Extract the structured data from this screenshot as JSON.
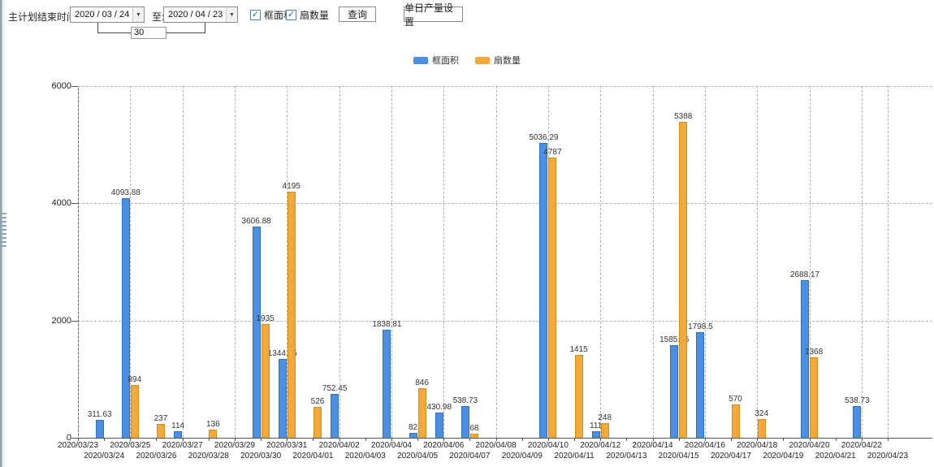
{
  "toolbar": {
    "end_time_label": "主计划结束时间:",
    "start_date": "2020 / 03 / 24",
    "to_label": "至:",
    "end_date": "2020 / 04 / 23",
    "day_span": "30",
    "checkboxes": [
      {
        "label": "框面积",
        "checked": true
      },
      {
        "label": "扇数量",
        "checked": true
      }
    ],
    "check_glyph": "✓",
    "dropdown_glyph": "▼",
    "query_button": "查询",
    "daily_output_button": "单日产量设置"
  },
  "legend": {
    "items": [
      {
        "label": "框面积",
        "color": "#4a8fe2"
      },
      {
        "label": "扇数量",
        "color": "#f5a93a"
      }
    ]
  },
  "chart_data": {
    "type": "bar",
    "title": "",
    "xlabel": "",
    "ylabel": "",
    "ylim": [
      0,
      6000
    ],
    "yticks": [
      6000,
      4000,
      2000,
      0
    ],
    "grid": true,
    "legend_position": "top-center",
    "categories": [
      "2020/03/23",
      "2020/03/24",
      "2020/03/25",
      "2020/03/26",
      "2020/03/27",
      "2020/03/28",
      "2020/03/29",
      "2020/03/30",
      "2020/03/31",
      "2020/04/01",
      "2020/04/02",
      "2020/04/03",
      "2020/04/04",
      "2020/04/05",
      "2020/04/06",
      "2020/04/07",
      "2020/04/08",
      "2020/04/09",
      "2020/04/10",
      "2020/04/11",
      "2020/04/12",
      "2020/04/13",
      "2020/04/14",
      "2020/04/15",
      "2020/04/16",
      "2020/04/17",
      "2020/04/18",
      "2020/04/19",
      "2020/04/20",
      "2020/04/21",
      "2020/04/22",
      "2020/04/23"
    ],
    "series": [
      {
        "name": "框面积",
        "key": "area",
        "color": "#4a8fe2",
        "values": [
          null,
          311.63,
          4093.88,
          null,
          114,
          null,
          null,
          3606.88,
          1344.95,
          null,
          752.45,
          null,
          1838.81,
          82,
          430.98,
          538.73,
          null,
          null,
          5036.29,
          null,
          111,
          null,
          null,
          1585.96,
          1798.5,
          null,
          null,
          null,
          2688.17,
          null,
          538.73,
          null
        ]
      },
      {
        "name": "扇数量",
        "key": "fans",
        "color": "#f5a93a",
        "values": [
          null,
          null,
          894,
          237,
          null,
          136,
          null,
          1935,
          4195,
          526,
          null,
          null,
          null,
          846,
          null,
          68,
          null,
          null,
          4787,
          1415,
          248,
          null,
          null,
          5388,
          null,
          570,
          324,
          null,
          1368,
          null,
          null,
          null
        ]
      }
    ]
  }
}
